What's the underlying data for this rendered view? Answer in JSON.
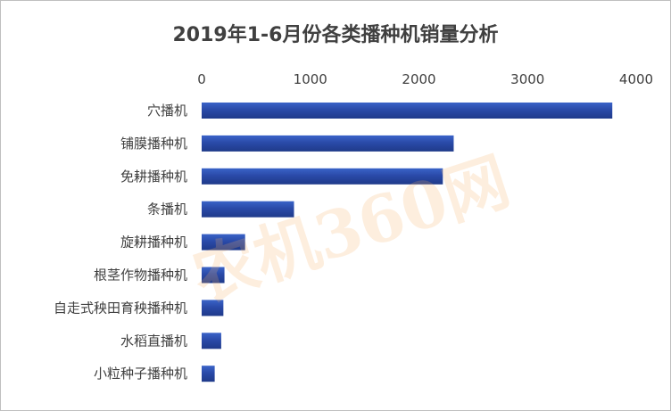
{
  "chart_data": {
    "type": "bar",
    "orientation": "horizontal",
    "title": "2019年1-6月份各类播种机销量分析",
    "xlabel": "",
    "ylabel": "",
    "xlim": [
      0,
      4000
    ],
    "ticks": [
      0,
      1000,
      2000,
      3000,
      4000
    ],
    "x_axis_position": "top",
    "grid": false,
    "categories": [
      "穴播机",
      "铺膜播种机",
      "免耕播种机",
      "条播机",
      "旋耕播种机",
      "根茎作物播种机",
      "自走式秧田育秧播种机",
      "水稻直播机",
      "小粒种子播种机"
    ],
    "values": [
      3780,
      2320,
      2220,
      850,
      400,
      210,
      200,
      180,
      120
    ],
    "bar_color_start": "#1f3a8a",
    "bar_color_end": "#3a63c8"
  },
  "watermark": {
    "text": "农机360网",
    "color": "#f4b06a"
  }
}
